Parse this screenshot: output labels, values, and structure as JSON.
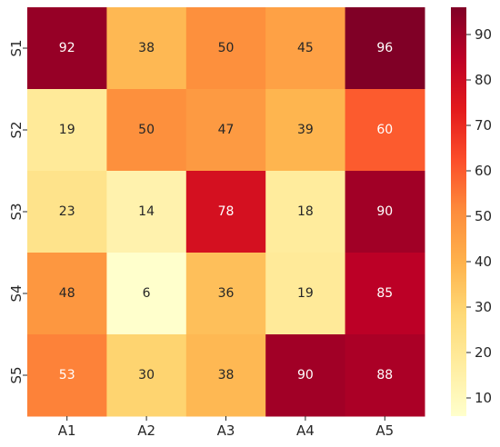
{
  "chart_data": {
    "type": "heatmap",
    "title": "",
    "xlabel": "",
    "ylabel": "",
    "x_categories": [
      "A1",
      "A2",
      "A3",
      "A4",
      "A5"
    ],
    "y_categories": [
      "S1",
      "S2",
      "S3",
      "S4",
      "S5"
    ],
    "values": [
      [
        92,
        38,
        50,
        45,
        96
      ],
      [
        19,
        50,
        47,
        39,
        60
      ],
      [
        23,
        14,
        78,
        18,
        90
      ],
      [
        48,
        6,
        36,
        19,
        85
      ],
      [
        53,
        30,
        38,
        90,
        88
      ]
    ],
    "colormap": "YlOrRd",
    "color_range": [
      6,
      96
    ],
    "colorbar": {
      "ticks": [
        10,
        20,
        30,
        40,
        50,
        60,
        70,
        80,
        90
      ],
      "placement": "right"
    },
    "annotated": true,
    "grid": false,
    "legend": "none"
  }
}
